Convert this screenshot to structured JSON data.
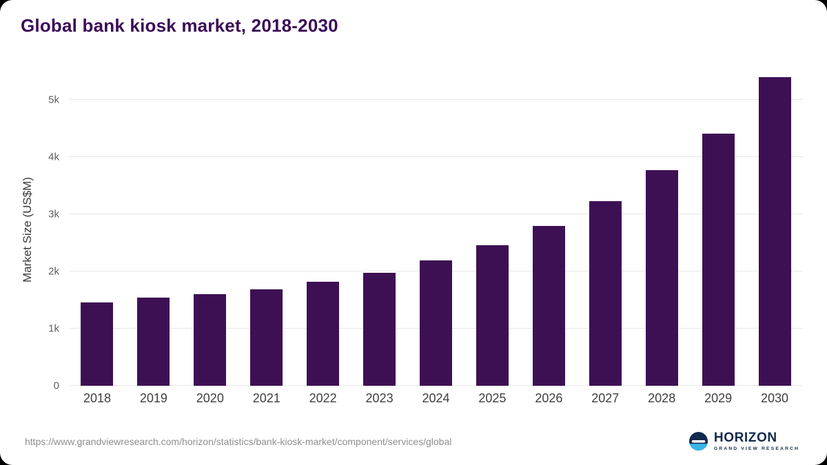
{
  "title": "Global bank kiosk market, 2018-2030",
  "source_url": "https://www.grandviewresearch.com/horizon/statistics/bank-kiosk-market/component/services/global",
  "logo": {
    "name": "HORIZON",
    "subtitle": "GRAND VIEW RESEARCH",
    "icon": "horizon-circle-icon",
    "navy": "#12294d",
    "light_blue": "#38b5e8"
  },
  "chart_data": {
    "type": "bar",
    "title": "Global bank kiosk market, 2018-2030",
    "xlabel": "",
    "ylabel": "Market Size (US$M)",
    "categories": [
      "2018",
      "2019",
      "2020",
      "2021",
      "2022",
      "2023",
      "2024",
      "2025",
      "2026",
      "2027",
      "2028",
      "2029",
      "2030"
    ],
    "values": [
      1460,
      1540,
      1600,
      1690,
      1820,
      1980,
      2190,
      2460,
      2800,
      3230,
      3780,
      4410,
      5400
    ],
    "ytick_labels": [
      "0",
      "1k",
      "2k",
      "3k",
      "4k",
      "5k"
    ],
    "ytick_values": [
      0,
      1000,
      2000,
      3000,
      4000,
      5000
    ],
    "ylim": [
      0,
      5450
    ],
    "grid": true,
    "legend_position": "none",
    "bar_color": "#3d1053",
    "title_color": "#3b0d56",
    "gridline_color": "#e7e7e7"
  }
}
